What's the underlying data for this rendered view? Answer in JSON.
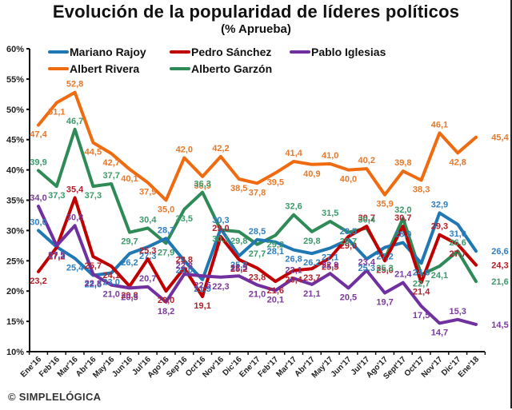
{
  "chart_data": {
    "type": "line",
    "title": "Evolución de la popularidad de líderes políticos",
    "subtitle": "(% Aprueba)",
    "xlabel": "",
    "ylabel": "",
    "ylim": [
      10,
      60
    ],
    "yticks": [
      10,
      15,
      20,
      25,
      30,
      35,
      40,
      45,
      50,
      55,
      60
    ],
    "ytick_labels": [
      "10%",
      "15%",
      "20%",
      "25%",
      "30%",
      "35%",
      "40%",
      "45%",
      "50%",
      "55%",
      "60%"
    ],
    "grid": false,
    "legend_position": "top",
    "categories": [
      "Ene'16",
      "Feb'16",
      "Mar'16",
      "Abr'16",
      "May'16",
      "Jun'16",
      "Jul'16",
      "Ago'16",
      "Sep'16",
      "Oct'16",
      "Nov'16",
      "Dic'16",
      "Ene'17",
      "Feb'17",
      "Mar'17",
      "Abr'17",
      "May'17",
      "Jun'17",
      "Jul'17",
      "Ago'17",
      "Sept'17",
      "Oct'17",
      "Nov'17",
      "Dic'17",
      "Ene'18"
    ],
    "series": [
      {
        "name": "Mariano Rajoy",
        "color": "#1f77b4",
        "values": [
          30.0,
          27.3,
          25.4,
          22.6,
          23.0,
          26.2,
          27.3,
          28.7,
          25.0,
          21.9,
          30.3,
          25.8,
          28.5,
          28.1,
          26.8,
          26.2,
          27.1,
          28.5,
          25.3,
          27.2,
          28.0,
          24.6,
          32.9,
          31.0,
          26.6
        ]
      },
      {
        "name": "Pedro Sánchez",
        "color": "#c00000",
        "values": [
          23.2,
          27.2,
          35.4,
          25.7,
          24.1,
          20.8,
          25.3,
          20.0,
          23.8,
          19.1,
          29.0,
          25.2,
          23.8,
          21.6,
          23.4,
          23.7,
          25.5,
          29.0,
          30.7,
          25.0,
          30.7,
          21.4,
          29.3,
          27.7,
          24.3
        ]
      },
      {
        "name": "Pablo Iglesias",
        "color": "#7030a0",
        "values": [
          34.0,
          27.5,
          30.8,
          22.8,
          21.0,
          20.5,
          20.7,
          18.2,
          22.8,
          22.5,
          22.3,
          22.5,
          21.0,
          20.1,
          22.1,
          21.1,
          22.9,
          20.5,
          23.4,
          19.7,
          21.4,
          17.5,
          14.7,
          15.3,
          14.5
        ]
      },
      {
        "name": "Albert Rivera",
        "color": "#f06a0f",
        "values": [
          47.4,
          51.1,
          52.8,
          44.5,
          42.7,
          40.1,
          37.9,
          35.0,
          42.0,
          38.9,
          42.2,
          38.5,
          37.8,
          39.5,
          41.4,
          40.9,
          41.0,
          40.0,
          40.2,
          35.9,
          39.8,
          38.3,
          46.1,
          42.8,
          45.4
        ]
      },
      {
        "name": "Alberto Garzón",
        "color": "#2e8b57",
        "values": [
          39.9,
          37.3,
          46.7,
          37.3,
          37.7,
          29.7,
          30.4,
          27.9,
          33.5,
          36.3,
          30.1,
          29.8,
          27.7,
          29.2,
          32.6,
          29.8,
          31.5,
          29.7,
          30.4,
          25.3,
          32.0,
          22.7,
          24.1,
          26.6,
          21.6
        ]
      }
    ],
    "label_colors": {
      "Mariano Rajoy": "#2f7fc1",
      "Pedro Sánchez": "#b3202a",
      "Pablo Iglesias": "#7a3b9c",
      "Albert Rivera": "#e8792b",
      "Alberto Garzón": "#3c9a6a"
    }
  },
  "legend": {
    "items": [
      {
        "label": "Mariano Rajoy"
      },
      {
        "label": "Pedro Sánchez"
      },
      {
        "label": "Pablo Iglesias"
      },
      {
        "label": "Albert Rivera"
      },
      {
        "label": "Alberto Garzón"
      }
    ]
  },
  "footer": {
    "credit": "© SIMPLELÓGICA"
  }
}
